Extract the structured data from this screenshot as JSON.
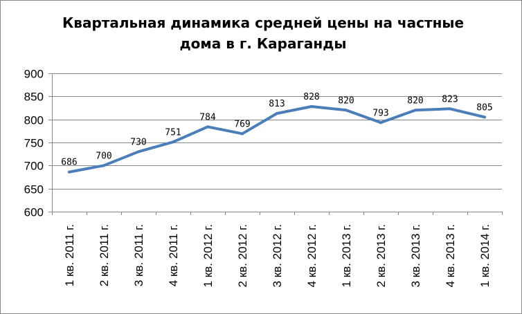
{
  "chart_data": {
    "type": "line",
    "title_lines": [
      "Квартальная динамика средней цены на частные",
      "дома в г. Караганды"
    ],
    "categories": [
      "1 кв. 2011 г.",
      "2 кв. 2011 г.",
      "3 кв. 2011 г.",
      "4 кв. 2011 г.",
      "1 кв. 2012 г.",
      "2 кв. 2012 г.",
      "3 кв. 2012 г.",
      "4 кв. 2012 г.",
      "1 кв. 2013 г.",
      "2 кв. 2013 г.",
      "3 кв. 2013 г.",
      "4 кв. 2013 г.",
      "1 кв. 2014 г."
    ],
    "series": [
      {
        "values": [
          686,
          700,
          730,
          751,
          784,
          769,
          813,
          828,
          820,
          793,
          820,
          823,
          805
        ]
      }
    ],
    "ylim": [
      600,
      900
    ],
    "yticks": [
      600,
      650,
      700,
      750,
      800,
      850,
      900
    ],
    "grid": true,
    "data_labels": true,
    "line_color": "#4a7ebb",
    "grid_color": "#868686"
  }
}
